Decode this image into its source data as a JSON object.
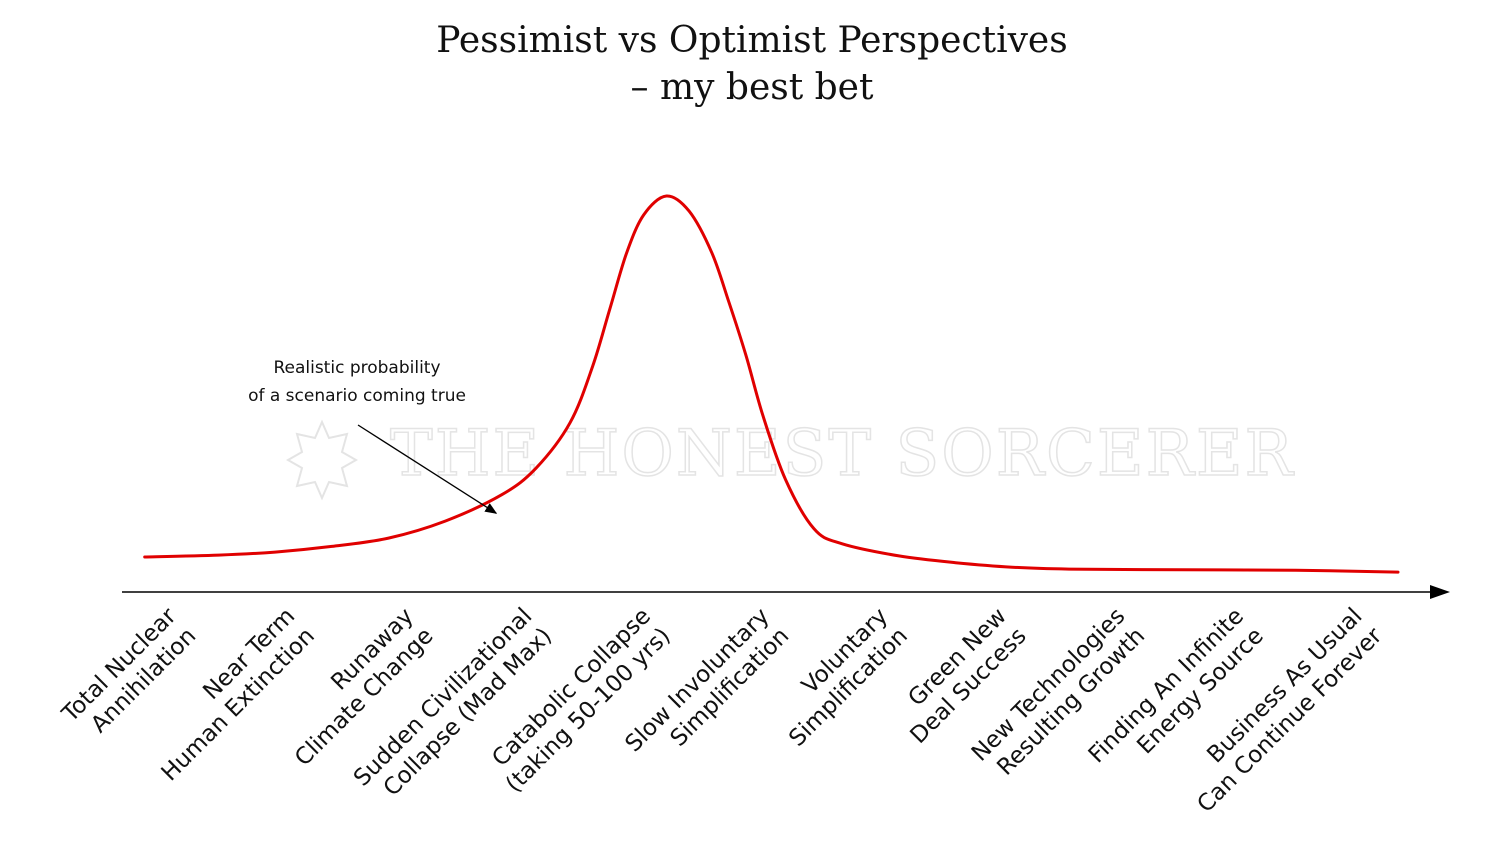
{
  "chart_data": {
    "type": "line",
    "title_lines": [
      "Pessimist vs Optimist Perspectives",
      "– my best bet"
    ],
    "xlabel": "",
    "ylabel": "",
    "grid": false,
    "legend": "none",
    "curve_color": "#e00000",
    "axis_color": "#000000",
    "categories": [
      [
        "Total Nuclear",
        "Annihilation"
      ],
      [
        "Near Term",
        "Human Extinction"
      ],
      [
        "Runaway",
        "Climate Change"
      ],
      [
        "Sudden Civilizational",
        "Collapse (Mad Max)"
      ],
      [
        "Catabolic Collapse",
        "(taking 50-100 yrs)"
      ],
      [
        "Slow Involuntary",
        "Simplification"
      ],
      [
        "Voluntary",
        "Simplification"
      ],
      [
        "Green New",
        "Deal Success"
      ],
      [
        "New Technologies",
        "Resulting Growth"
      ],
      [
        "Finding An Infinite",
        "Energy Source"
      ],
      [
        "Business As Usual",
        "Can Continue Forever"
      ]
    ],
    "ylim": [
      0,
      100
    ],
    "xlim": [
      -0.35,
      11.2
    ],
    "series": [
      {
        "values": [
          [
            -0.15,
            4.5
          ],
          [
            0.5,
            5
          ],
          [
            1.0,
            5.8
          ],
          [
            1.5,
            7.3
          ],
          [
            2.0,
            9.5
          ],
          [
            2.5,
            14
          ],
          [
            3.0,
            21
          ],
          [
            3.3,
            28
          ],
          [
            3.6,
            40
          ],
          [
            3.8,
            55
          ],
          [
            3.95,
            70
          ],
          [
            4.1,
            85
          ],
          [
            4.25,
            95
          ],
          [
            4.45,
            100
          ],
          [
            4.65,
            96
          ],
          [
            4.85,
            85
          ],
          [
            5.0,
            72
          ],
          [
            5.15,
            58
          ],
          [
            5.3,
            42
          ],
          [
            5.5,
            25
          ],
          [
            5.75,
            12
          ],
          [
            6.0,
            8
          ],
          [
            6.5,
            4.8
          ],
          [
            7.0,
            3
          ],
          [
            7.5,
            1.8
          ],
          [
            8.0,
            1.3
          ],
          [
            9.0,
            1.1
          ],
          [
            10.0,
            1.0
          ],
          [
            10.9,
            0.5
          ]
        ]
      }
    ],
    "annotations": [
      {
        "text_lines": [
          "Realistic probability",
          "of a scenario coming true"
        ],
        "x": 2.95,
        "y": 15,
        "arrow": true
      }
    ],
    "watermark": "THE HONEST SORCERER"
  }
}
